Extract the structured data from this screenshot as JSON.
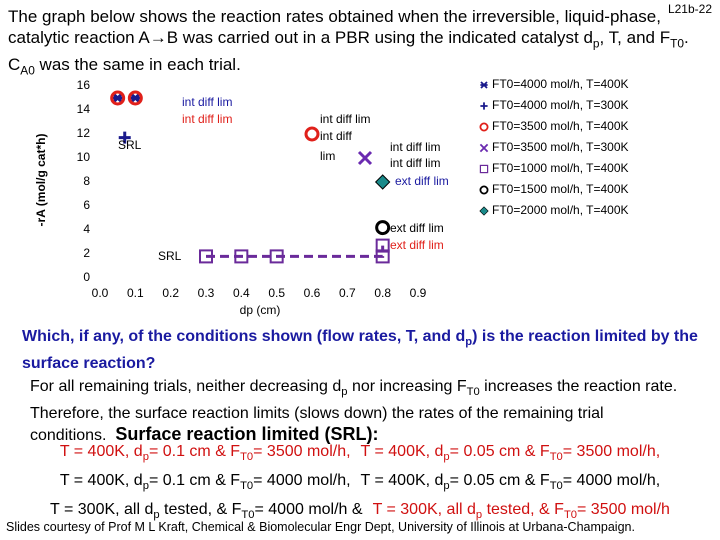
{
  "corner_label": "L21b-22",
  "intro": [
    "The graph below shows the reaction rates obtained when the irreversible, liquid-phase, catalytic reaction A→B was carried out in a PBR using the indicated catalyst d",
    "p",
    ", T, and F",
    "T0",
    ". C",
    "A0",
    " was the same in each trial."
  ],
  "chart_data": {
    "type": "scatter",
    "x_label": "dp (cm)",
    "y_label": "-rA (mol/g cat*h)",
    "xlim": [
      0,
      0.9
    ],
    "xticks": [
      {
        "value": 0,
        "label": "0.0"
      },
      0.1,
      0.2,
      0.3,
      0.4,
      0.5,
      0.6,
      0.7,
      0.8,
      0.9
    ],
    "ylim": [
      0,
      16
    ],
    "yticks": [
      0,
      2,
      4,
      6,
      8,
      10,
      12,
      14,
      16
    ],
    "series": [
      {
        "name": "FT0=4000 mol/h, T=400K",
        "color": "#1a1a8c",
        "marker": "asterisk",
        "x": [
          0.05,
          0.1
        ],
        "values": [
          15,
          15
        ]
      },
      {
        "name": "FT0=4000 mol/h, T=300K",
        "color": "#1a1a8c",
        "marker": "plus",
        "x": [
          0.07
        ],
        "values": [
          11.7
        ]
      },
      {
        "name": "FT0=3500 mol/h, T=400K",
        "color": "#e0201a",
        "marker": "circle",
        "x": [
          0.05,
          0.1,
          0.6
        ],
        "values": [
          15,
          15,
          12
        ]
      },
      {
        "name": "FT0=3500 mol/h, T=300K",
        "color": "#6a2ab0",
        "marker": "cross",
        "x": [
          0.75
        ],
        "values": [
          10
        ]
      },
      {
        "name": "FT0=1000 mol/h, T=400K",
        "color": "#6a2a9a",
        "marker": "square",
        "line": "dashed",
        "x": [
          0.3,
          0.4,
          0.5,
          0.8,
          0.8
        ],
        "values": [
          1.8,
          1.8,
          1.8,
          1.8,
          2.7
        ]
      },
      {
        "name": "FT0=1500 mol/h, T=400K",
        "color": "#000000",
        "marker": "circle",
        "x": [
          0.8
        ],
        "values": [
          4.2
        ]
      },
      {
        "name": "FT0=2000 mol/h, T=400K",
        "color": "#1a8a8a",
        "marker": "diamond",
        "x": [
          0.8
        ],
        "values": [
          8
        ]
      }
    ],
    "annotations": [
      "int diff lim",
      "int diff lim",
      "SRL",
      "int diff lim",
      "int diff",
      "lim",
      "int diff lim",
      "int diff lim",
      "ext diff lim",
      "ext diff lim",
      "ext diff lim",
      "SRL"
    ]
  },
  "question": [
    "Which, if any, of the conditions shown (flow rates, T, and d",
    "p",
    ") is the reaction limited by the surface reaction?"
  ],
  "answer": [
    "For all remaining trials, neither decreasing d",
    "p",
    " nor increasing F",
    "T0",
    " increases the reaction rate.  Therefore, the surface reaction limits (slows down) the rates of the remaining trial conditions."
  ],
  "answer_heading": "Surface reaction limited (SRL):",
  "conditions": [
    [
      {
        "segments": [
          "T = 400K, d",
          "p",
          "= 0.1 cm & F",
          "T0",
          "= 3500 mol/h,"
        ],
        "color": "#d01010"
      },
      {
        "segments": [
          "T = 400K, d",
          "p",
          "= 0.05 cm & F",
          "T0",
          "= 3500 mol/h,"
        ],
        "color": "#d01010"
      }
    ],
    [
      {
        "segments": [
          "T = 400K, d",
          "p",
          "= 0.1 cm & F",
          "T0",
          "= 4000 mol/h,"
        ],
        "color": "#000000"
      },
      {
        "segments": [
          "T = 400K, d",
          "p",
          "= 0.05 cm & F",
          "T0",
          "= 4000 mol/h,"
        ],
        "color": "#000000"
      }
    ],
    [
      {
        "segments": [
          "T = 300K, all d",
          "p",
          " tested, & F",
          "T0",
          "= 4000 mol/h &"
        ],
        "color": "#000000"
      },
      {
        "segments": [
          "T = 300K, all d",
          "p",
          " tested, & F",
          "T0",
          "= 3500 mol/h"
        ],
        "color": "#d01010"
      }
    ]
  ],
  "footer": "Slides courtesy of Prof M L Kraft, Chemical & Biomolecular Engr Dept, University of Illinois at Urbana-Champaign."
}
